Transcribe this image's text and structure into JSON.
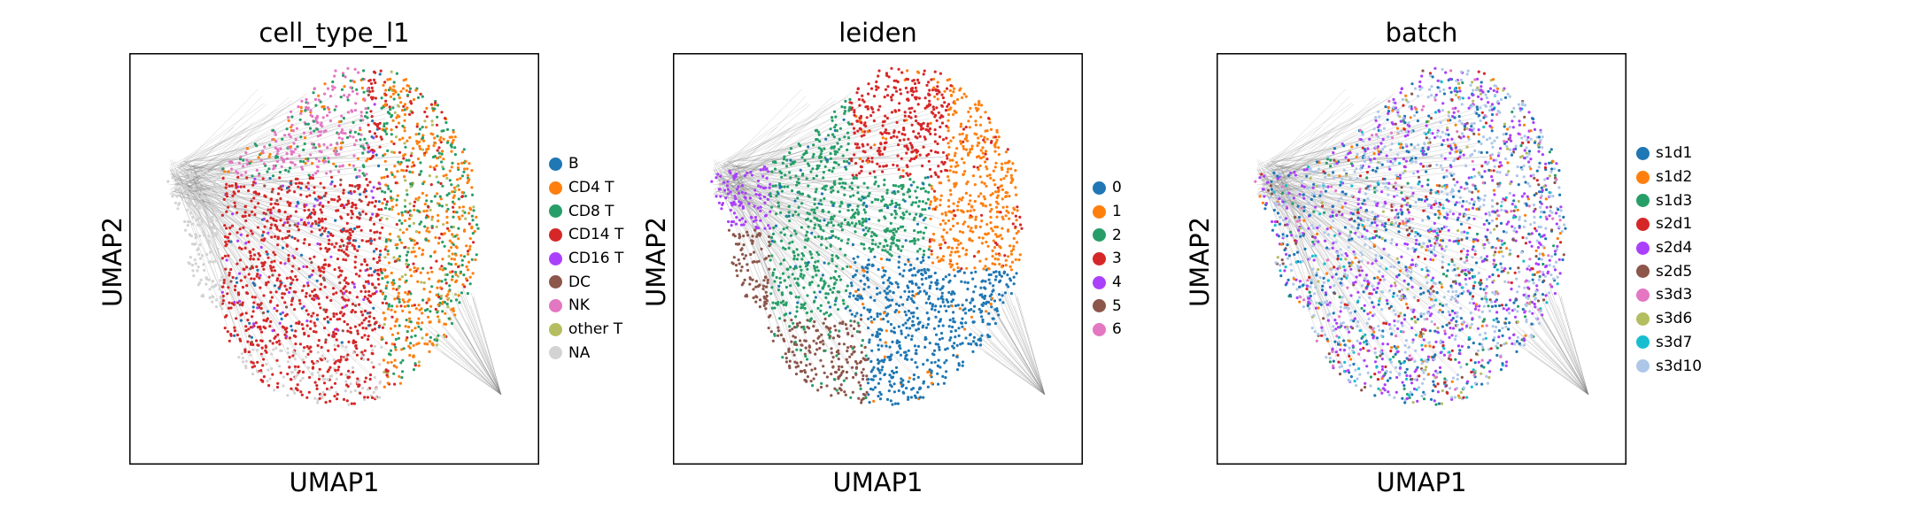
{
  "chart_data": [
    {
      "type": "scatter",
      "title": "cell_type_l1",
      "xlabel": "UMAP1",
      "ylabel": "UMAP2",
      "grid": false,
      "legend_position": "right",
      "legend": [
        {
          "label": "B",
          "color": "#1f77b4"
        },
        {
          "label": "CD4 T",
          "color": "#ff7f0e"
        },
        {
          "label": "CD8 T",
          "color": "#279e68"
        },
        {
          "label": "CD14 T",
          "color": "#d62728"
        },
        {
          "label": "CD16 T",
          "color": "#aa40fc"
        },
        {
          "label": "DC",
          "color": "#8c564b"
        },
        {
          "label": "NK",
          "color": "#e377c2"
        },
        {
          "label": "other T",
          "color": "#b5bd61"
        },
        {
          "label": "NA",
          "color": "#d3d3d3"
        }
      ]
    },
    {
      "type": "scatter",
      "title": "leiden",
      "xlabel": "UMAP1",
      "ylabel": "UMAP2",
      "grid": false,
      "legend_position": "right",
      "legend": [
        {
          "label": "0",
          "color": "#1f77b4"
        },
        {
          "label": "1",
          "color": "#ff7f0e"
        },
        {
          "label": "2",
          "color": "#279e68"
        },
        {
          "label": "3",
          "color": "#d62728"
        },
        {
          "label": "4",
          "color": "#aa40fc"
        },
        {
          "label": "5",
          "color": "#8c564b"
        },
        {
          "label": "6",
          "color": "#e377c2"
        }
      ]
    },
    {
      "type": "scatter",
      "title": "batch",
      "xlabel": "UMAP1",
      "ylabel": "UMAP2",
      "grid": false,
      "legend_position": "right",
      "legend": [
        {
          "label": "s1d1",
          "color": "#1f77b4"
        },
        {
          "label": "s1d2",
          "color": "#ff7f0e"
        },
        {
          "label": "s1d3",
          "color": "#279e68"
        },
        {
          "label": "s2d1",
          "color": "#d62728"
        },
        {
          "label": "s2d4",
          "color": "#aa40fc"
        },
        {
          "label": "s2d5",
          "color": "#8c564b"
        },
        {
          "label": "s3d3",
          "color": "#e377c2"
        },
        {
          "label": "s3d6",
          "color": "#b5bd61"
        },
        {
          "label": "s3d7",
          "color": "#17becf"
        },
        {
          "label": "s3d10",
          "color": "#aec7e8"
        }
      ]
    }
  ]
}
